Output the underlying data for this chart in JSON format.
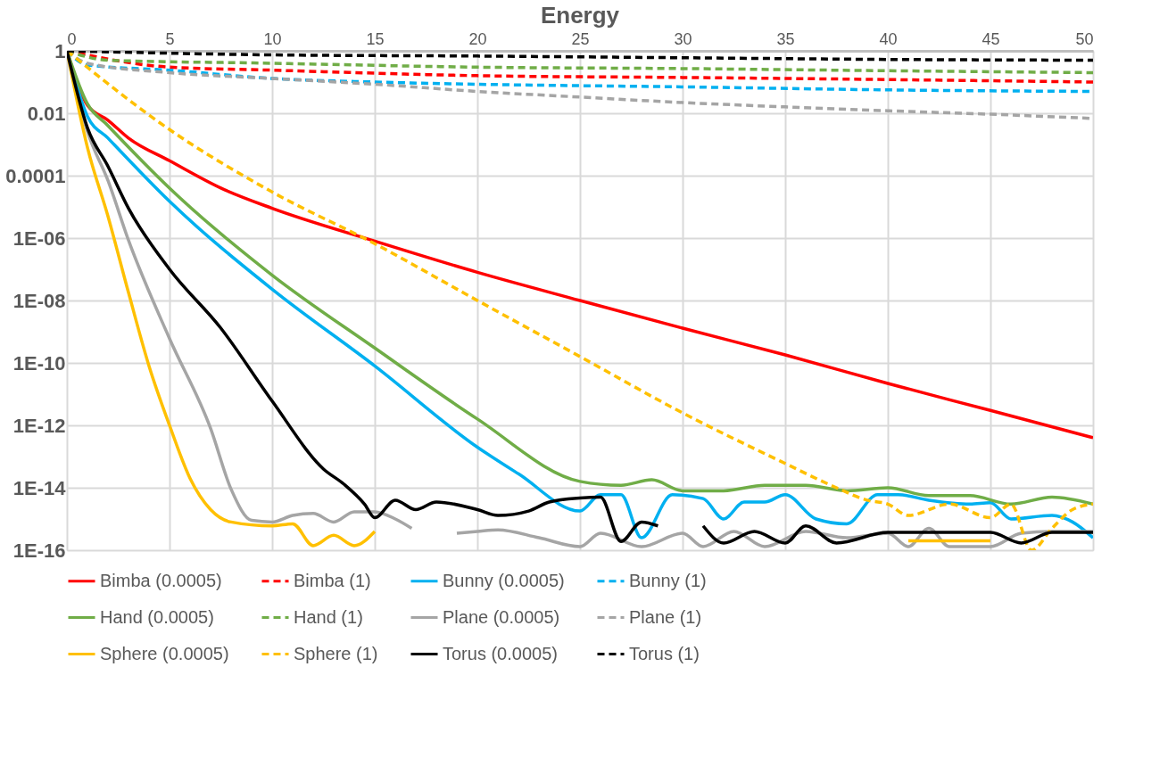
{
  "chart_data": {
    "type": "line",
    "title": "Energy",
    "log": "y",
    "grid": true,
    "legend": "bottom",
    "xlim": [
      0,
      50
    ],
    "xticks": [
      0,
      5,
      10,
      15,
      20,
      25,
      30,
      35,
      40,
      45,
      50
    ],
    "ylim": [
      1e-16,
      1
    ],
    "yticks": [
      1,
      0.01,
      0.0001,
      {
        "value": 1e-06,
        "label": "1E-06"
      },
      {
        "value": 1e-08,
        "label": "1E-08"
      },
      {
        "value": 1e-10,
        "label": "1E-10"
      },
      {
        "value": 1e-12,
        "label": "1E-12"
      },
      {
        "value": 1e-14,
        "label": "1E-14"
      },
      {
        "value": 1e-16,
        "label": "1E-16"
      }
    ],
    "series": [
      {
        "name": "Bimba (0.0005)",
        "color": "#ff0000",
        "line_style": "solid",
        "x": [
          0,
          1,
          2,
          3,
          5,
          7.5,
          10,
          15,
          20,
          25,
          30,
          35,
          40,
          45,
          50
        ],
        "values": [
          1,
          0.018,
          0.006,
          0.0016,
          0.0003,
          4e-05,
          9e-06,
          8e-07,
          8e-08,
          1e-08,
          1.3e-09,
          1.8e-10,
          2.2e-11,
          3e-12,
          4e-13
        ]
      },
      {
        "name": "Bimba (1)",
        "color": "#ff0000",
        "line_style": "dashed",
        "x": [
          0,
          5,
          10,
          20,
          30,
          40,
          50
        ],
        "values": [
          1,
          0.3,
          0.24,
          0.16,
          0.14,
          0.12,
          0.1
        ]
      },
      {
        "name": "Bunny (0.0005)",
        "color": "#00b0f0",
        "line_style": "solid",
        "x": [
          0,
          1,
          2,
          5,
          10,
          15,
          20,
          22,
          25,
          26,
          27,
          28,
          29.5,
          31,
          32,
          33,
          34,
          35,
          36.5,
          38,
          39.5,
          40.5,
          42,
          44,
          45,
          46,
          48,
          49,
          50
        ],
        "values": [
          1,
          0.008,
          0.0016,
          1.5e-05,
          2.3e-08,
          8e-11,
          2e-13,
          2.8e-14,
          1.8e-15,
          6e-15,
          6e-15,
          2.5e-16,
          6e-15,
          4.5e-15,
          1e-15,
          3.5e-15,
          3.5e-15,
          6e-15,
          1e-15,
          7e-16,
          6e-15,
          6e-15,
          4e-15,
          3e-15,
          3.3e-15,
          1e-15,
          1.3e-15,
          8e-16,
          2.5e-16
        ]
      },
      {
        "name": "Bunny (1)",
        "color": "#00b0f0",
        "line_style": "dashed",
        "x": [
          0,
          1,
          5,
          10,
          15,
          20,
          30,
          40,
          50
        ],
        "values": [
          1,
          0.35,
          0.24,
          0.13,
          0.1,
          0.085,
          0.07,
          0.056,
          0.05
        ]
      },
      {
        "name": "Hand (0.0005)",
        "color": "#70ad47",
        "line_style": "solid",
        "x": [
          0,
          1,
          2,
          5,
          10,
          15,
          20,
          25,
          27,
          28.5,
          30,
          32,
          34,
          36,
          38,
          40,
          42,
          44,
          46,
          48,
          50
        ],
        "values": [
          1,
          0.02,
          0.004,
          4e-05,
          6.5e-08,
          3e-10,
          1.6e-12,
          1.6e-14,
          1.2e-14,
          1.8e-14,
          8e-15,
          8e-15,
          1.2e-14,
          1.2e-14,
          8e-15,
          1e-14,
          5.6e-15,
          5.6e-15,
          3e-15,
          5e-15,
          3e-15
        ]
      },
      {
        "name": "Hand (1)",
        "color": "#70ad47",
        "line_style": "dashed",
        "x": [
          0,
          2,
          10,
          20,
          30,
          40,
          50
        ],
        "values": [
          1,
          0.5,
          0.4,
          0.3,
          0.27,
          0.23,
          0.2
        ]
      },
      {
        "name": "Plane (0.0005)",
        "color": "#a5a5a5",
        "line_style": "solid",
        "x": [
          0,
          1,
          2,
          3,
          5,
          7,
          8,
          9,
          10,
          11,
          12,
          13,
          14,
          15,
          16,
          16.8,
          18,
          19,
          20,
          21,
          23,
          25,
          26,
          28,
          30,
          31,
          32.5,
          34,
          36,
          38,
          40,
          41,
          42,
          43,
          45,
          46.5,
          48,
          50
        ],
        "values": [
          1,
          0.0026,
          7e-05,
          8.5e-07,
          6e-10,
          8e-13,
          9e-15,
          9e-16,
          8e-16,
          1.3e-15,
          1.5e-15,
          8e-16,
          1.7e-15,
          1.7e-15,
          1e-15,
          5e-16,
          null,
          3.5e-16,
          4e-16,
          4.5e-16,
          2.5e-16,
          1.3e-16,
          3.5e-16,
          1.3e-16,
          3.5e-16,
          1.3e-16,
          4e-16,
          1.3e-16,
          4e-16,
          2.5e-16,
          3.5e-16,
          1.3e-16,
          5e-16,
          1.3e-16,
          1.3e-16,
          3.5e-16,
          4e-16,
          4e-16
        ]
      },
      {
        "name": "Plane (1)",
        "color": "#a5a5a5",
        "line_style": "dashed",
        "x": [
          0,
          1,
          5,
          10,
          15,
          20,
          25,
          30,
          35,
          40,
          45,
          50
        ],
        "values": [
          1,
          0.4,
          0.2,
          0.13,
          0.085,
          0.05,
          0.033,
          0.022,
          0.016,
          0.012,
          0.0093,
          0.0068
        ]
      },
      {
        "name": "Sphere (0.0005)",
        "color": "#ffc000",
        "line_style": "solid",
        "x": [
          0,
          1,
          2,
          3,
          4,
          5,
          6,
          7,
          8,
          10,
          11,
          12,
          13,
          14,
          15,
          28,
          41,
          43,
          45
        ],
        "values": [
          1,
          0.0008,
          5e-06,
          1.8e-08,
          8e-11,
          1e-12,
          2e-14,
          2e-15,
          8e-16,
          6e-16,
          7e-16,
          1.4e-16,
          3e-16,
          1.4e-16,
          4e-16,
          null,
          2e-16,
          2e-16,
          2e-16
        ]
      },
      {
        "name": "Sphere (1)",
        "color": "#ffc000",
        "line_style": "dashed",
        "x": [
          0,
          5,
          10,
          15,
          20,
          25,
          30,
          35,
          37.5,
          39,
          40,
          41,
          43,
          45,
          46,
          47,
          48,
          49,
          50
        ],
        "values": [
          1,
          0.003,
          3e-05,
          6.6e-07,
          1e-08,
          1.6e-10,
          2.5e-12,
          6e-14,
          1e-14,
          4e-15,
          3e-15,
          1.3e-15,
          3e-15,
          1.1e-15,
          3e-15,
          1e-16,
          5e-16,
          2e-15,
          3e-15
        ]
      },
      {
        "name": "Torus (0.0005)",
        "color": "#000000",
        "line_style": "solid",
        "x": [
          0,
          1,
          2,
          3,
          5,
          7.5,
          10,
          12.5,
          13.5,
          14.5,
          15,
          16,
          17,
          18,
          20,
          21,
          22.5,
          23.5,
          25,
          26,
          27,
          28,
          28.8,
          30,
          31,
          32,
          33.5,
          35,
          36,
          37.5,
          40,
          45,
          46.5,
          48,
          50
        ],
        "values": [
          1,
          0.0034,
          0.0002,
          9e-06,
          1e-07,
          1.3e-09,
          6e-12,
          4e-14,
          1.3e-14,
          3e-15,
          1.1e-15,
          4e-15,
          2e-15,
          3.5e-15,
          2e-15,
          1.3e-15,
          1.8e-15,
          3.5e-15,
          4.7e-15,
          5e-15,
          1.9e-16,
          8e-16,
          6e-16,
          null,
          6e-16,
          1.7e-16,
          4e-16,
          1.7e-16,
          6e-16,
          1.7e-16,
          3.7e-16,
          3.7e-16,
          1.7e-16,
          3.7e-16,
          3.7e-16
        ]
      },
      {
        "name": "Torus (1)",
        "color": "#000000",
        "line_style": "dashed",
        "x": [
          0,
          10,
          20,
          30,
          40,
          50
        ],
        "values": [
          1,
          0.74,
          0.68,
          0.6,
          0.53,
          0.5
        ]
      }
    ]
  }
}
